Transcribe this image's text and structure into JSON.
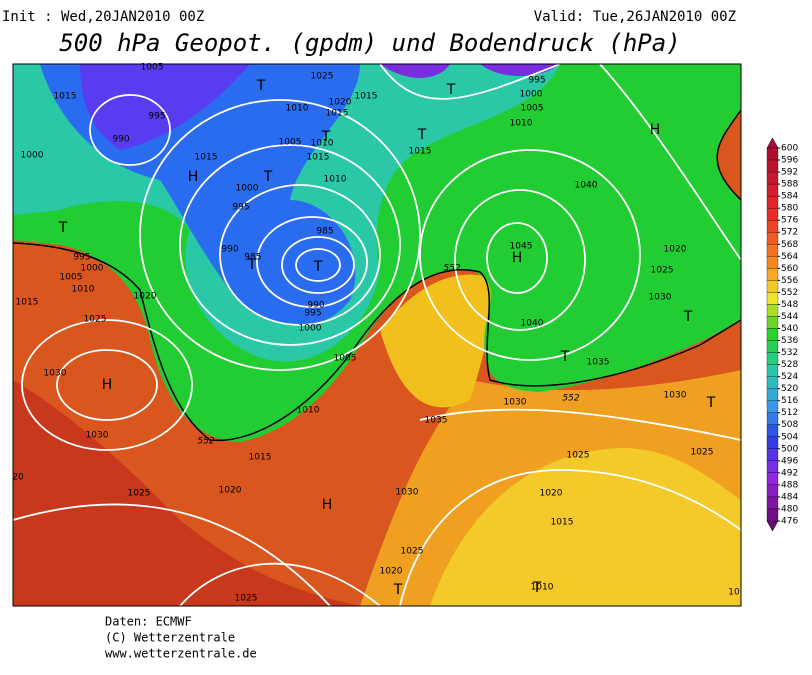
{
  "header": {
    "init": "Init : Wed,20JAN2010 00Z",
    "valid": "Valid: Tue,26JAN2010 00Z",
    "title": "500 hPa Geopot. (gpdm) und Bodendruck (hPa)"
  },
  "colorbar": {
    "levels": [
      600,
      596,
      592,
      588,
      584,
      580,
      576,
      572,
      568,
      564,
      560,
      556,
      552,
      548,
      544,
      540,
      536,
      532,
      528,
      524,
      520,
      516,
      512,
      508,
      504,
      500,
      496,
      492,
      488,
      484,
      480,
      476
    ]
  },
  "map": {
    "labels": [
      "1005",
      "1025",
      "995",
      "1015",
      "1010",
      "1020",
      "1015",
      "1000",
      "995",
      "1015",
      "1005",
      "1010",
      "990",
      "1005",
      "1010",
      "1015",
      "1000",
      "1015",
      "1015",
      "1010",
      "1040",
      "1000",
      "995",
      "985",
      "990",
      "985",
      "1045",
      "1020",
      "995",
      "1000",
      "1025",
      "1005",
      "1010",
      "1020",
      "1015",
      "1030",
      "1025",
      "990",
      "995",
      "1040",
      "1000",
      "1005",
      "1035",
      "1030",
      "1010",
      "1030",
      "1030",
      "1035",
      "1030",
      "1015",
      "1025",
      "1025",
      "1020",
      "1030",
      "1025",
      "1020",
      "1015",
      "1025",
      "1020",
      "1010",
      "1025",
      "20",
      "10"
    ],
    "contour_labels": [
      "552",
      "552",
      "552"
    ],
    "highs": [
      "H",
      "H",
      "H",
      "H",
      "H"
    ],
    "lows": [
      "T",
      "T",
      "T",
      "T",
      "T",
      "T",
      "T",
      "T",
      "T",
      "T",
      "T",
      "T",
      "T"
    ]
  },
  "footer": [
    "Daten: ECMWF",
    "(C) Wetterzentrale",
    "www.wetterzentrale.de"
  ]
}
